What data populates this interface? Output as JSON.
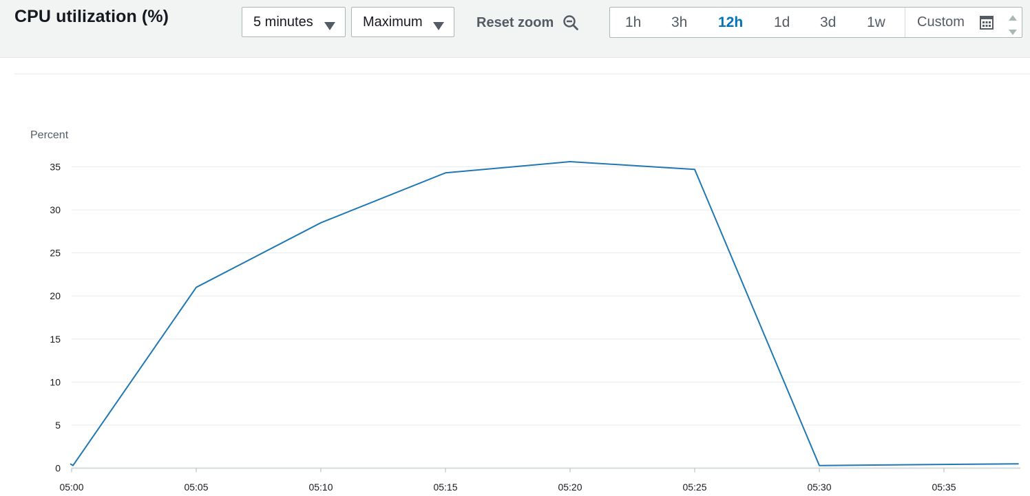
{
  "header": {
    "title": "CPU utilization (%)",
    "period": {
      "selected": "5 minutes"
    },
    "statistic": {
      "selected": "Maximum"
    },
    "reset_zoom_label": "Reset zoom",
    "time_ranges": [
      {
        "label": "1h",
        "active": false
      },
      {
        "label": "3h",
        "active": false
      },
      {
        "label": "12h",
        "active": true
      },
      {
        "label": "1d",
        "active": false
      },
      {
        "label": "3d",
        "active": false
      },
      {
        "label": "1w",
        "active": false
      }
    ],
    "custom_label": "Custom"
  },
  "colors": {
    "series": "#1f77b4",
    "active_range": "#0073bb",
    "grid": "#e9ebed",
    "axis": "#d5dbdb"
  },
  "chart_data": {
    "type": "line",
    "title": "",
    "xlabel": "",
    "ylabel": "Percent",
    "xlim": [
      "05:00",
      "05:38"
    ],
    "ylim": [
      0,
      35
    ],
    "yticks": [
      0,
      5,
      10,
      15,
      20,
      25,
      30,
      35
    ],
    "xticks": [
      "05:00",
      "05:05",
      "05:10",
      "05:15",
      "05:20",
      "05:25",
      "05:30",
      "05:35"
    ],
    "grid": true,
    "legend": "none",
    "series": [
      {
        "x": [
          "05:00",
          "05:00",
          "05:05",
          "05:10",
          "05:15",
          "05:20",
          "05:25",
          "05:30",
          "05:38"
        ],
        "y": [
          0.5,
          0.3,
          21.0,
          28.5,
          34.3,
          35.6,
          34.7,
          0.3,
          0.5
        ]
      }
    ]
  }
}
